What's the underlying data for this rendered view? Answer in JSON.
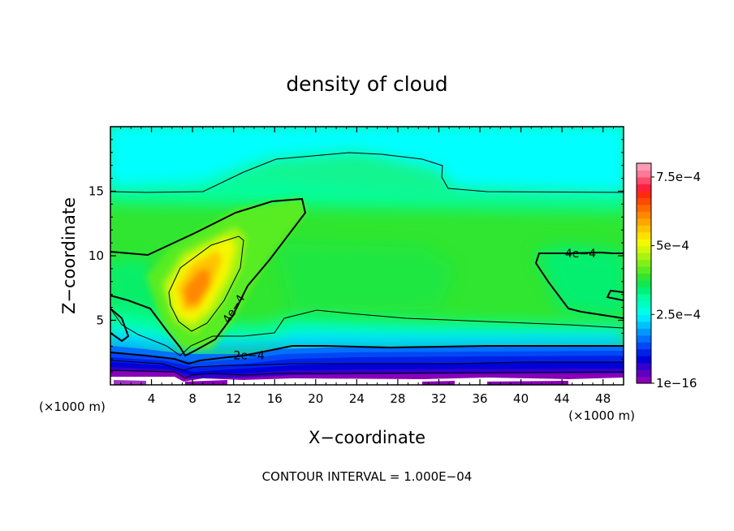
{
  "chart_data": {
    "type": "heatmap",
    "title": "density of cloud",
    "xlabel": "X−coordinate",
    "ylabel": "Z−coordinate",
    "x_unit_left": "(×1000 m)",
    "x_unit_right": "(×1000 m)",
    "xlim": [
      0,
      50
    ],
    "ylim": [
      0,
      20
    ],
    "x_ticks": [
      4,
      8,
      12,
      16,
      20,
      24,
      28,
      32,
      36,
      40,
      44,
      48
    ],
    "x_tick_labels": [
      "4",
      "8",
      "12",
      "16",
      "20",
      "24",
      "28",
      "32",
      "36",
      "40",
      "44",
      "48"
    ],
    "y_ticks": [
      5,
      10,
      15
    ],
    "y_tick_labels": [
      "5",
      "10",
      "15"
    ],
    "colorbar": {
      "min": 1e-16,
      "max": 0.0008,
      "tick_values": [
        1e-16,
        0.00025,
        0.0005,
        0.00075
      ],
      "tick_labels": [
        "1e−16",
        "2.5e−4",
        "5e−4",
        "7.5e−4"
      ],
      "colors": [
        "#8a00b8",
        "#5e00c2",
        "#3300cc",
        "#0000d8",
        "#0020e8",
        "#0048f4",
        "#0070ff",
        "#0098ff",
        "#00c0ff",
        "#00e8ff",
        "#00ffe6",
        "#00ffc4",
        "#00ffa0",
        "#00f078",
        "#10e850",
        "#30e630",
        "#58ec20",
        "#80f018",
        "#a8f410",
        "#d0f808",
        "#f4f800",
        "#ffe000",
        "#ffc400",
        "#ffa600",
        "#ff8800",
        "#ff6a00",
        "#ff4a00",
        "#ff2a10",
        "#ff2040",
        "#ff4a6a",
        "#ff7896",
        "#ff9cb4"
      ]
    },
    "contour_labels": [
      {
        "text": "4e−4",
        "x": 45.8,
        "z": 10.2
      },
      {
        "text": "4e−4",
        "x": 12,
        "z": 5.9
      },
      {
        "text": "2e−4",
        "x": 13.5,
        "z": 2.3
      }
    ],
    "contour_interval": "CONTOUR INTERVAL = 1.000E−04"
  }
}
